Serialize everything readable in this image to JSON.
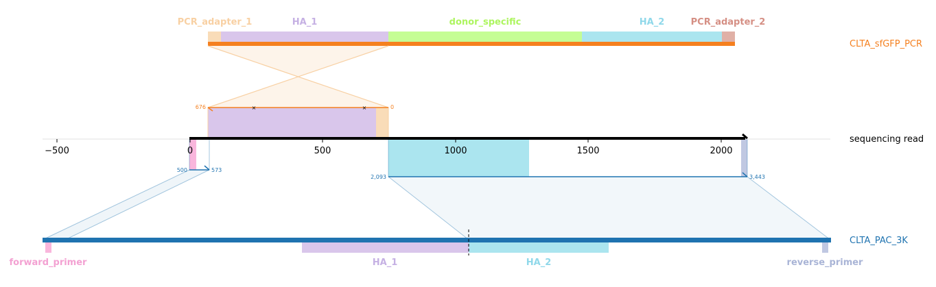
{
  "colors": {
    "pcr_adapter": "#f9dcb8",
    "pcr_adapter_label": "#f8d0a3",
    "pcr_adapter_2": "#e0b0a6",
    "pcr_adapter_2_label": "#d58f84",
    "ha1": "#d9c6eb",
    "ha1_label": "#c5b0e3",
    "donor_specific": "#c5fd94",
    "donor_specific_label": "#adf55f",
    "ha2": "#abe5ef",
    "ha2_label": "#8fd8ea",
    "pcr_line": "#f5801f",
    "blue": "#1f73b0",
    "forward_primer": "#f9b6dc",
    "forward_primer_label": "#f3a1d2",
    "reverse_primer": "#c0c8e2",
    "reverse_primer_label": "#a9b4d6",
    "black": "#000000"
  },
  "top_track": {
    "name": "CLTA_sfGFP_PCR",
    "features": [
      "PCR_adapter_1",
      "HA_1",
      "donor_specific",
      "HA_2",
      "PCR_adapter_2"
    ]
  },
  "read_track": {
    "name": "sequencing read",
    "axis_ticks": [
      "−500",
      "0",
      "500",
      "1000",
      "1500",
      "2000"
    ],
    "top_alignment": {
      "start_label": "676",
      "end_label": "0"
    },
    "left_alignment": {
      "start_label": "500",
      "end_label": "573"
    },
    "right_alignment": {
      "start_label": "2,093",
      "end_label": "3,443"
    }
  },
  "bottom_track": {
    "name": "CLTA_PAC_3K",
    "features": [
      "forward_primer",
      "HA_1",
      "HA_2",
      "reverse_primer"
    ]
  }
}
